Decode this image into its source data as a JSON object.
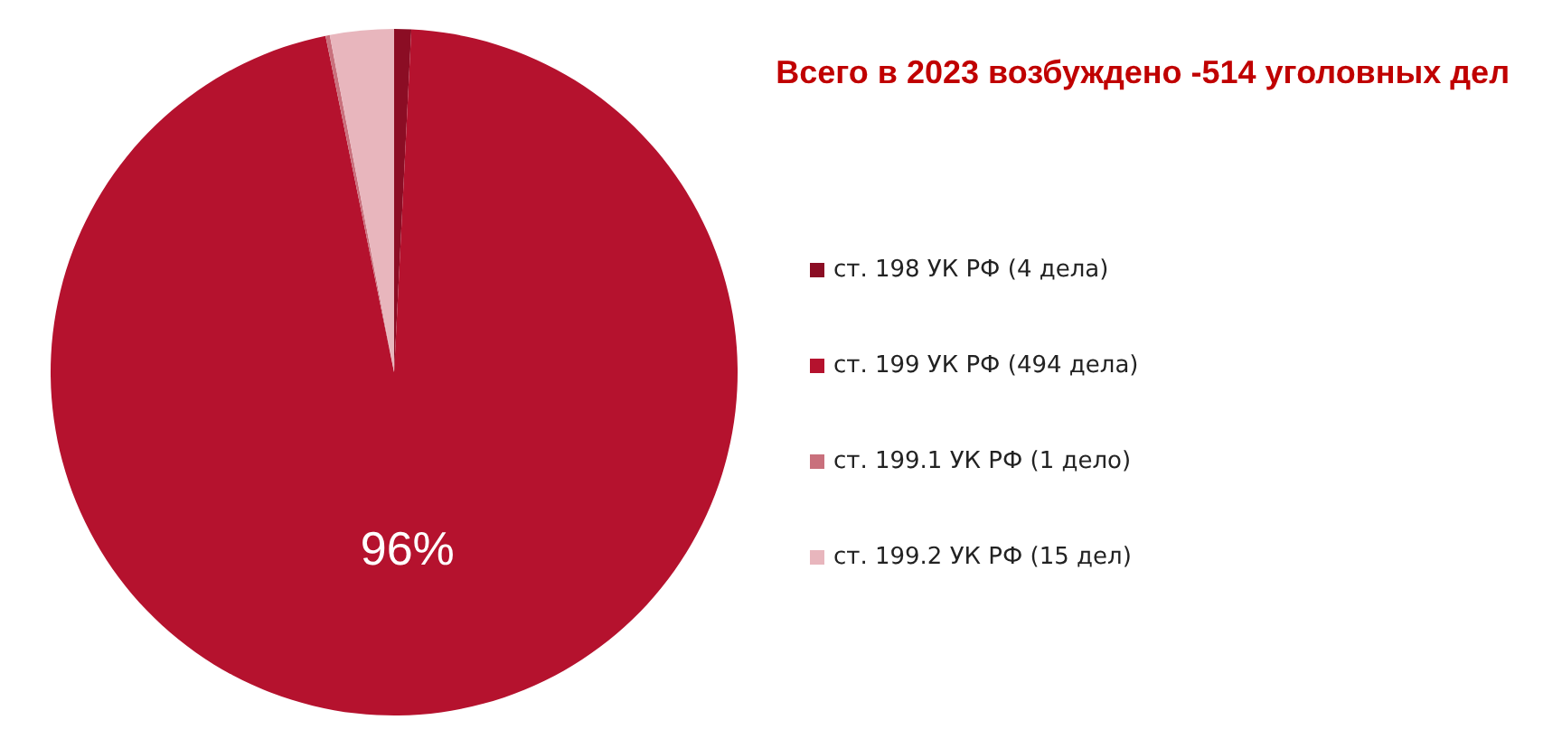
{
  "chart_data": {
    "type": "pie",
    "title": "Всего в 2023 возбуждено -514 уголовных дел",
    "categories": [
      "ст. 198 УК РФ (4 дела)",
      "ст. 199 УК РФ (494 дела)",
      "ст. 199.1 УК РФ (1 дело)",
      "ст. 199.2 УК РФ (15 дел)"
    ],
    "values": [
      0.8,
      96,
      0.2,
      3
    ],
    "colors": [
      "#8b0d24",
      "#b5122e",
      "#c9707c",
      "#e8b6bd"
    ],
    "value_labels": [
      null,
      "96%",
      null,
      null
    ],
    "legend": "right"
  }
}
